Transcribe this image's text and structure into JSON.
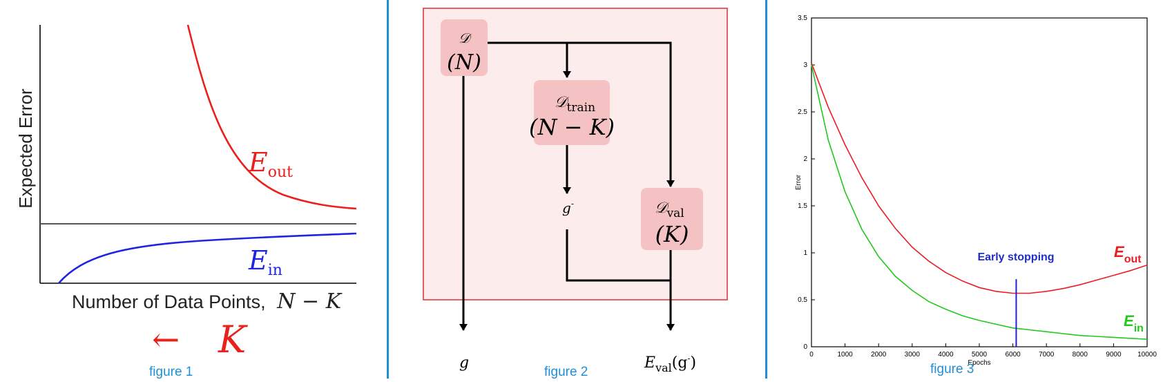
{
  "figure1": {
    "caption": "figure 1",
    "ylabel": "Expected Error",
    "xlabel_text": "Number of Data Points,",
    "xlabel_math": "N − K",
    "arrow_label": "←",
    "k_label": "K",
    "eout_label": "E",
    "eout_sub": "out",
    "ein_label": "E",
    "ein_sub": "in",
    "colors": {
      "eout": "#e8211c",
      "ein": "#1f24e0",
      "asymptote": "#555555",
      "k": "#e8211c"
    }
  },
  "figure2": {
    "caption": "figure 2",
    "nodes": {
      "d": {
        "name": "𝒟",
        "size": "(N)"
      },
      "dtrain": {
        "name": "𝒟",
        "sub": "train",
        "size": "(N − K)"
      },
      "gminus": {
        "label": "g",
        "sup": "-"
      },
      "dval": {
        "name": "𝒟",
        "sub": "val",
        "size": "(K)"
      },
      "g": {
        "label": "g"
      },
      "eval": {
        "label": "E",
        "sub": "val",
        "arg": "(g",
        "argsup": "-",
        "close": ")"
      }
    },
    "colors": {
      "box_fill": "#f5c2c3",
      "frame_fill": "#fcecec",
      "frame_stroke": "#e03a3a"
    }
  },
  "figure3": {
    "caption": "figure 3",
    "annotation": "Early stopping",
    "eout_label": "E",
    "eout_sub": "out",
    "ein_label": "E",
    "ein_sub": "in",
    "colors": {
      "eout": "#ec1c24",
      "ein": "#22c81e",
      "marker": "#2020d0",
      "annotation": "#1e2cc8"
    }
  },
  "chart_data": {
    "type": "line",
    "xlabel": "Epochs",
    "ylabel": "Error",
    "xlim": [
      0,
      10000
    ],
    "ylim": [
      0,
      3.5
    ],
    "xticks": [
      0,
      1000,
      2000,
      3000,
      4000,
      5000,
      6000,
      7000,
      8000,
      9000,
      10000
    ],
    "yticks": [
      0,
      0.5,
      1,
      1.5,
      2,
      2.5,
      3,
      3.5
    ],
    "grid": false,
    "series": [
      {
        "name": "E_out",
        "color": "#ec1c24",
        "x": [
          0,
          500,
          1000,
          1500,
          2000,
          2500,
          3000,
          3500,
          4000,
          4500,
          5000,
          5500,
          6000,
          6500,
          7000,
          7500,
          8000,
          8500,
          9000,
          9500,
          10000
        ],
        "y": [
          3.02,
          2.55,
          2.15,
          1.8,
          1.5,
          1.26,
          1.06,
          0.91,
          0.79,
          0.7,
          0.63,
          0.59,
          0.57,
          0.57,
          0.59,
          0.62,
          0.66,
          0.71,
          0.76,
          0.81,
          0.87
        ]
      },
      {
        "name": "E_in",
        "color": "#22c81e",
        "x": [
          0,
          500,
          1000,
          1500,
          2000,
          2500,
          3000,
          3500,
          4000,
          4500,
          5000,
          5500,
          6000,
          6500,
          7000,
          7500,
          8000,
          8500,
          9000,
          9500,
          10000
        ],
        "y": [
          3.0,
          2.2,
          1.65,
          1.25,
          0.96,
          0.75,
          0.6,
          0.48,
          0.4,
          0.33,
          0.28,
          0.24,
          0.2,
          0.18,
          0.16,
          0.14,
          0.12,
          0.11,
          0.1,
          0.09,
          0.08
        ]
      }
    ],
    "markers": [
      {
        "x": 6100,
        "y_from": 0,
        "y_to": 0.72,
        "label": "Early stopping"
      }
    ]
  }
}
